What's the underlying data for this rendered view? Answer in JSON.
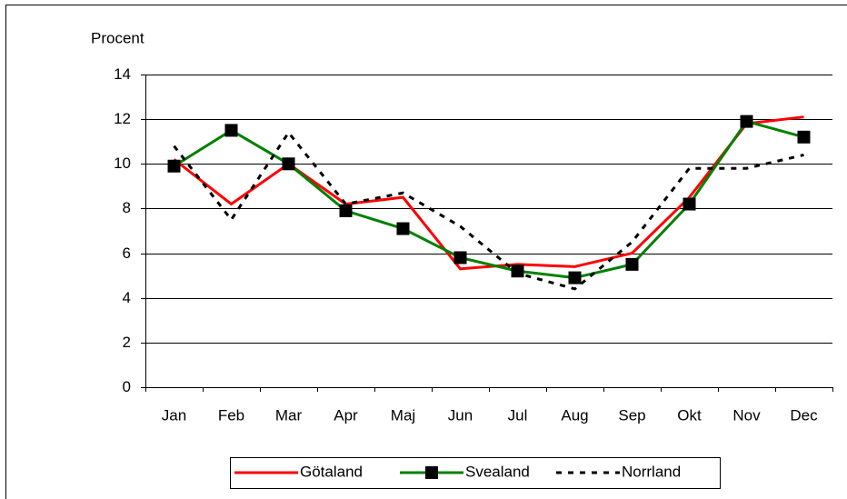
{
  "chart_data": {
    "type": "line",
    "y_label": "Procent",
    "categories": [
      "Jan",
      "Feb",
      "Mar",
      "Apr",
      "Maj",
      "Jun",
      "Jul",
      "Aug",
      "Sep",
      "Okt",
      "Nov",
      "Dec"
    ],
    "series": [
      {
        "name": "Götaland",
        "color": "#ff0000",
        "values": [
          10.2,
          8.2,
          10.0,
          8.2,
          8.5,
          5.3,
          5.5,
          5.4,
          6.0,
          8.5,
          11.8,
          12.1
        ]
      },
      {
        "name": "Svealand",
        "color": "#008000",
        "values": [
          9.9,
          11.5,
          10.0,
          7.9,
          7.1,
          5.8,
          5.2,
          4.9,
          5.5,
          8.2,
          11.9,
          11.2
        ]
      },
      {
        "name": "Norrland",
        "color": "#000000",
        "dashed": true,
        "values": [
          10.8,
          7.5,
          11.4,
          8.2,
          8.7,
          7.2,
          5.1,
          4.4,
          6.5,
          9.8,
          9.8,
          10.4
        ]
      }
    ],
    "ylim": [
      0,
      14
    ],
    "yticks": [
      0,
      2,
      4,
      6,
      8,
      10,
      12,
      14
    ],
    "grid": true,
    "legend": "bottom"
  }
}
